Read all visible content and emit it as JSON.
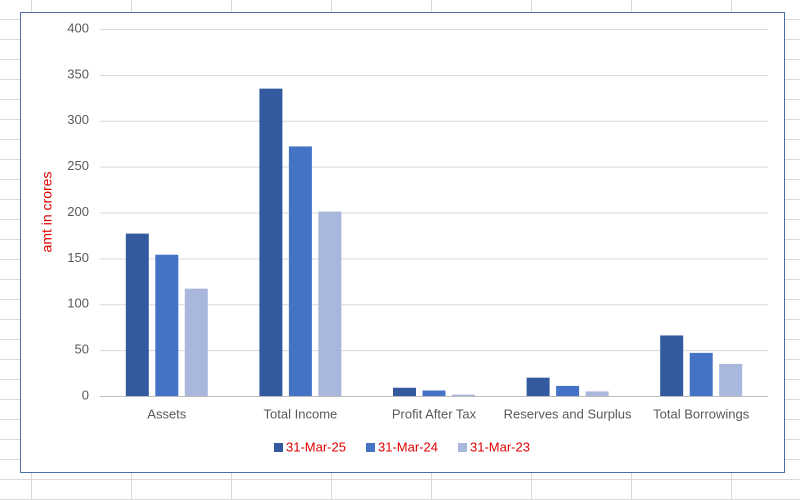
{
  "chart_data": {
    "type": "bar",
    "y_label": "amt in crores",
    "categories": [
      "Assets",
      "Total Income",
      "Profit After Tax",
      "Reserves and Surplus",
      "Total Borrowings"
    ],
    "series": [
      {
        "name": "31-Mar-25",
        "color": "#335a9f",
        "values": [
          177,
          335,
          9,
          20,
          66
        ]
      },
      {
        "name": "31-Mar-24",
        "color": "#4472c4",
        "values": [
          154,
          272,
          6,
          11,
          47
        ]
      },
      {
        "name": "31-Mar-23",
        "color": "#a9b7dc",
        "values": [
          117,
          201,
          1.5,
          5,
          35
        ]
      }
    ],
    "ylim": [
      0,
      400
    ],
    "yticks": [
      0,
      50,
      100,
      150,
      200,
      250,
      300,
      350,
      400
    ],
    "grid": true,
    "legend": "bottom",
    "legend_text_color": "#e00000",
    "y_label_color": "#e00000"
  }
}
